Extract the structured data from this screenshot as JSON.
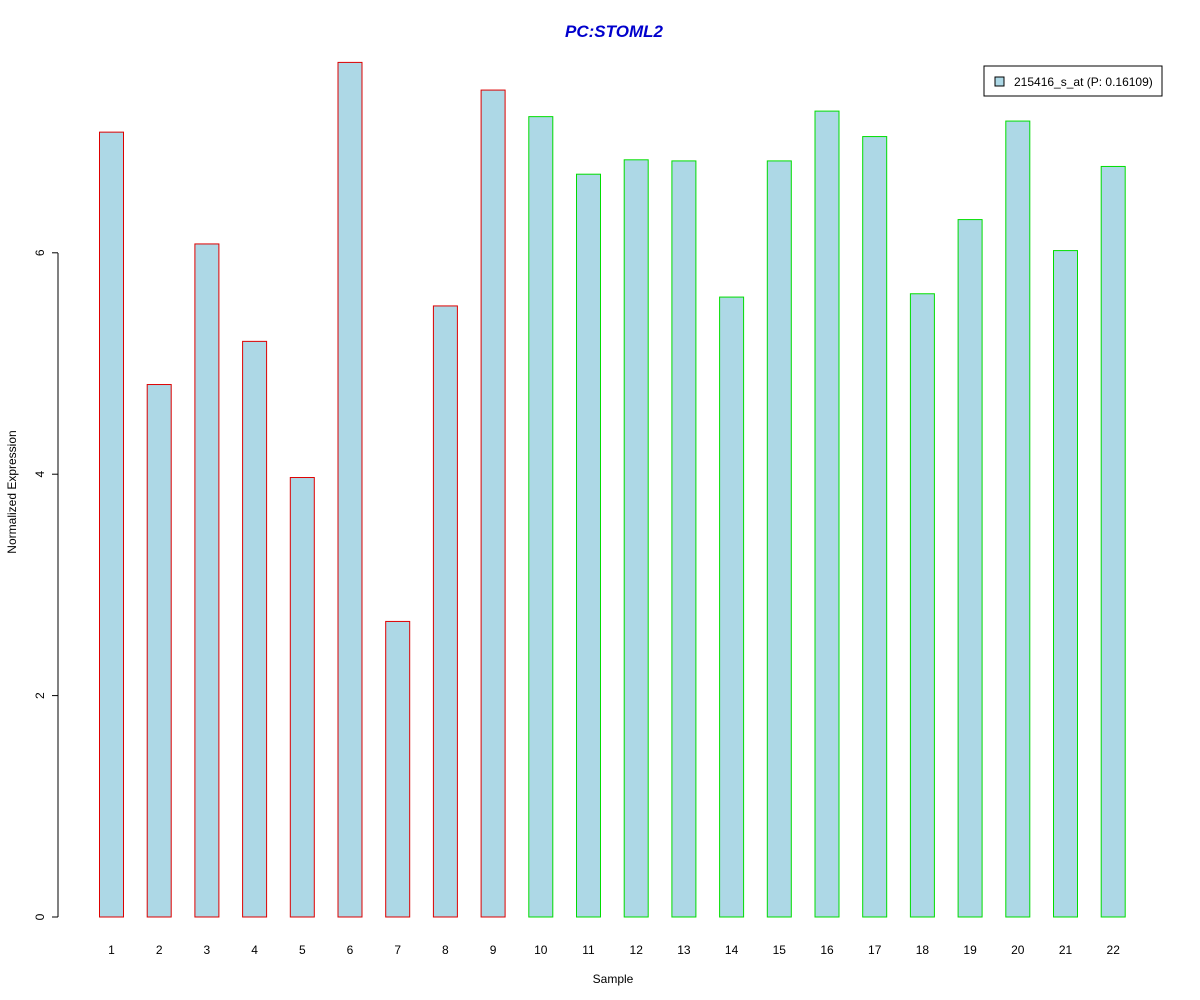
{
  "chart_data": {
    "type": "bar",
    "title": "PC:STOML2",
    "xlabel": "Sample",
    "ylabel": "Normalized Expression",
    "categories": [
      "1",
      "2",
      "3",
      "4",
      "5",
      "6",
      "7",
      "8",
      "9",
      "10",
      "11",
      "12",
      "13",
      "14",
      "15",
      "16",
      "17",
      "18",
      "19",
      "20",
      "21",
      "22"
    ],
    "series": [
      {
        "name": "215416_s_at (P: 0.16109)",
        "values": [
          7.09,
          4.81,
          6.08,
          5.2,
          3.97,
          7.72,
          2.67,
          5.52,
          7.47,
          7.23,
          6.71,
          6.84,
          6.83,
          5.6,
          6.83,
          7.28,
          7.05,
          5.63,
          6.3,
          7.19,
          6.02,
          6.78
        ]
      }
    ],
    "group_edge_colors": [
      "#dd0000",
      "#dd0000",
      "#dd0000",
      "#dd0000",
      "#dd0000",
      "#dd0000",
      "#dd0000",
      "#dd0000",
      "#dd0000",
      "#00dd00",
      "#00dd00",
      "#00dd00",
      "#00dd00",
      "#00dd00",
      "#00dd00",
      "#00dd00",
      "#00dd00",
      "#00dd00",
      "#00dd00",
      "#00dd00",
      "#00dd00",
      "#00dd00"
    ],
    "bar_fill": "#add8e6",
    "title_color": "#0000cc",
    "yticks": [
      0,
      2,
      4,
      6
    ],
    "ylim": [
      0,
      7.8
    ],
    "legend_position": "top-right",
    "grid": false
  }
}
